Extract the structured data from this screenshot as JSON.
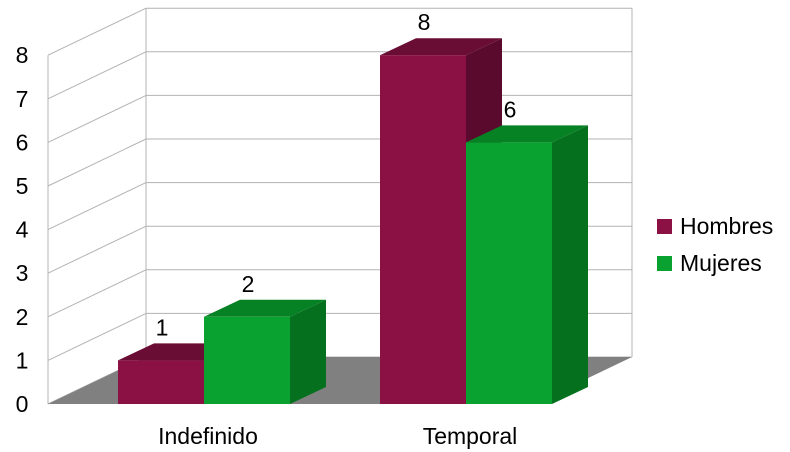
{
  "chart_data": {
    "type": "bar",
    "categories": [
      "Indefinido",
      "Temporal"
    ],
    "series": [
      {
        "name": "Hombres",
        "values": [
          1,
          8
        ],
        "color": "#8b1144",
        "top_color": "#6a0d34",
        "side_color": "#5a0a2c"
      },
      {
        "name": "Mujeres",
        "values": [
          2,
          6
        ],
        "color": "#09a12f",
        "top_color": "#068224",
        "side_color": "#05711f"
      }
    ],
    "yticks": [
      "0",
      "1",
      "2",
      "3",
      "4",
      "5",
      "6",
      "7",
      "8"
    ],
    "ylim": [
      0,
      8
    ],
    "grid": true,
    "legend": "right",
    "floor_color": "#808080",
    "style": "3d"
  }
}
